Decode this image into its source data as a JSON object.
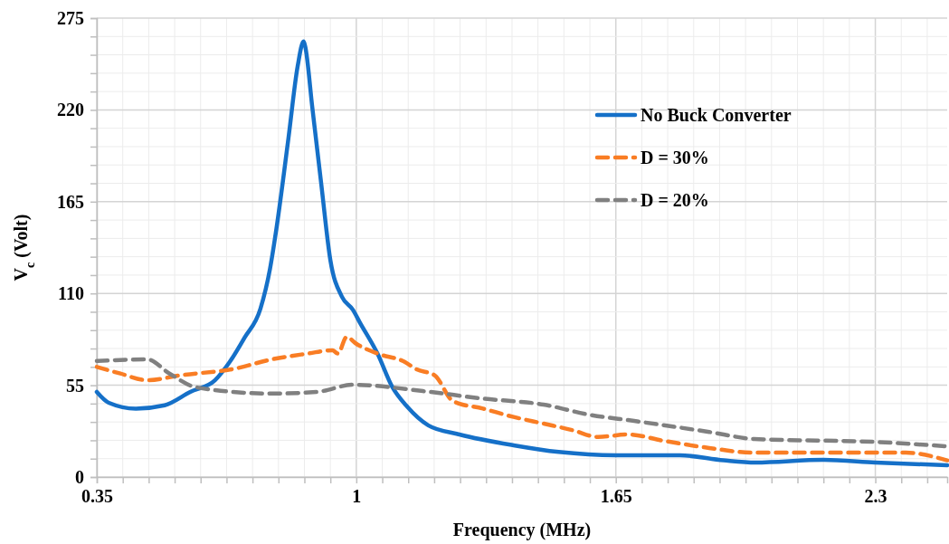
{
  "chart_data": {
    "type": "line",
    "xlabel": "Frequency (MHz)",
    "ylabel": "V$_{c}$ (Volt)",
    "xlim": [
      0.35,
      2.48
    ],
    "ylim": [
      0,
      275
    ],
    "xticks": [
      0.35,
      {
        "value": 0.415,
        "label": null
      },
      {
        "value": 0.48,
        "label": null
      },
      {
        "value": 0.545,
        "label": null
      },
      {
        "value": 0.61,
        "label": null
      },
      {
        "value": 0.675,
        "label": null
      },
      {
        "value": 0.74,
        "label": null
      },
      {
        "value": 0.805,
        "label": null
      },
      {
        "value": 0.87,
        "label": null
      },
      {
        "value": 0.935,
        "label": null
      },
      1,
      {
        "value": 1.065,
        "label": null
      },
      {
        "value": 1.13,
        "label": null
      },
      {
        "value": 1.195,
        "label": null
      },
      {
        "value": 1.26,
        "label": null
      },
      {
        "value": 1.325,
        "label": null
      },
      {
        "value": 1.39,
        "label": null
      },
      {
        "value": 1.455,
        "label": null
      },
      {
        "value": 1.52,
        "label": null
      },
      {
        "value": 1.585,
        "label": null
      },
      1.65,
      {
        "value": 1.715,
        "label": null
      },
      {
        "value": 1.78,
        "label": null
      },
      {
        "value": 1.845,
        "label": null
      },
      {
        "value": 1.91,
        "label": null
      },
      {
        "value": 1.975,
        "label": null
      },
      {
        "value": 2.04,
        "label": null
      },
      {
        "value": 2.105,
        "label": null
      },
      {
        "value": 2.17,
        "label": null
      },
      {
        "value": 2.235,
        "label": null
      },
      2.3,
      {
        "value": 2.365,
        "label": null
      },
      {
        "value": 2.43,
        "label": null
      }
    ],
    "yticks": [
      0,
      {
        "value": 11,
        "label": null
      },
      {
        "value": 22,
        "label": null
      },
      {
        "value": 33,
        "label": null
      },
      {
        "value": 44,
        "label": null
      },
      55,
      {
        "value": 66,
        "label": null
      },
      {
        "value": 77,
        "label": null
      },
      {
        "value": 88,
        "label": null
      },
      {
        "value": 99,
        "label": null
      },
      110,
      {
        "value": 121,
        "label": null
      },
      {
        "value": 132,
        "label": null
      },
      {
        "value": 143,
        "label": null
      },
      {
        "value": 154,
        "label": null
      },
      165,
      {
        "value": 176,
        "label": null
      },
      {
        "value": 187,
        "label": null
      },
      {
        "value": 198,
        "label": null
      },
      {
        "value": 209,
        "label": null
      },
      220,
      {
        "value": 231,
        "label": null
      },
      {
        "value": 242,
        "label": null
      },
      {
        "value": 253,
        "label": null
      },
      {
        "value": 264,
        "label": null
      },
      275
    ],
    "grid": true,
    "legend": "top right",
    "marker": "none",
    "series": [
      {
        "name": "No Buck Converter",
        "color": "#1570c8",
        "line_style": "solid",
        "x": [
          0.35,
          0.38,
          0.448,
          0.52,
          0.584,
          0.646,
          0.683,
          0.72,
          0.76,
          0.784,
          0.8,
          0.83,
          0.853,
          0.868,
          0.872,
          0.89,
          0.912,
          0.935,
          0.964,
          0.992,
          1.008,
          1.053,
          1.09,
          1.128,
          1.18,
          1.258,
          1.394,
          1.507,
          1.65,
          1.81,
          1.92,
          2.0,
          2.17,
          2.3,
          2.48
        ],
        "values": [
          51,
          44.5,
          41,
          43,
          51,
          58,
          69,
          83.5,
          101,
          125,
          149,
          203,
          246,
          261,
          258,
          221,
          176,
          130,
          108,
          100,
          93,
          74,
          54,
          42,
          31,
          25.5,
          19,
          15,
          13,
          13,
          10,
          8.7,
          10.3,
          8.7,
          7
        ]
      },
      {
        "name": "D = 30%",
        "color": "#f97d24",
        "line_style": "dashed",
        "x": [
          0.35,
          0.409,
          0.477,
          0.561,
          0.697,
          0.788,
          0.879,
          0.94,
          0.954,
          0.976,
          0.999,
          1.053,
          1.121,
          1.151,
          1.196,
          1.242,
          1.317,
          1.394,
          1.469,
          1.543,
          1.605,
          1.68,
          1.77,
          1.884,
          1.997,
          2.376,
          2.48
        ],
        "values": [
          66,
          62,
          58,
          61,
          65,
          70.5,
          74,
          76,
          74,
          84,
          80,
          74,
          69,
          64.5,
          61,
          45.5,
          41,
          36,
          32,
          28,
          24,
          25.5,
          21.7,
          17.4,
          14.6,
          14.6,
          10
        ]
      },
      {
        "name": "D = 20%",
        "color": "#808080",
        "line_style": "dashed",
        "x": [
          0.35,
          0.477,
          0.532,
          0.6,
          0.788,
          0.901,
          0.992,
          1.167,
          1.317,
          1.469,
          1.582,
          1.696,
          1.884,
          1.997,
          2.301,
          2.48
        ],
        "values": [
          69.5,
          70.5,
          62,
          53.7,
          50,
          51,
          55.3,
          51.5,
          47,
          43.4,
          37.4,
          33.6,
          27,
          22.8,
          21,
          18.4
        ]
      }
    ]
  }
}
